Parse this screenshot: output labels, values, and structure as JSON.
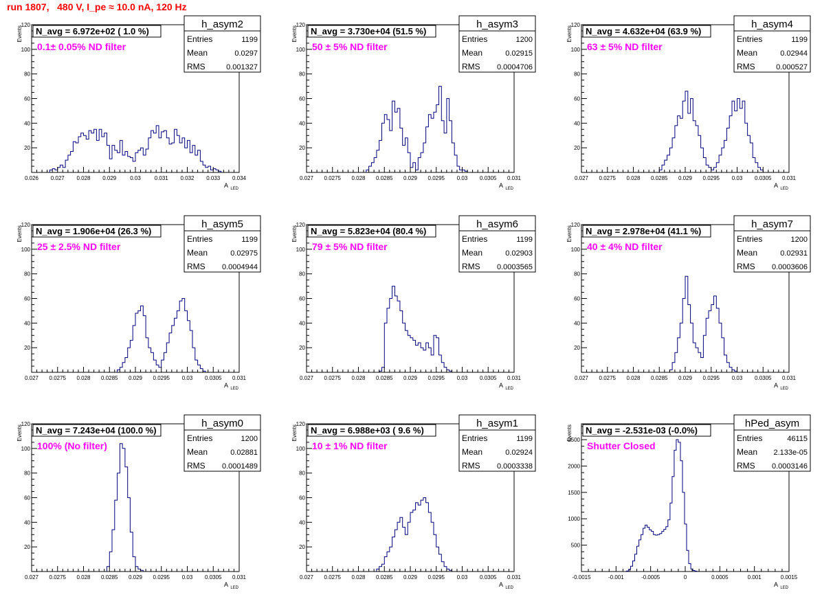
{
  "page": {
    "title": "run 1807,   480 V, I_pe ≈ 10.0 nA, 120 Hz"
  },
  "colors": {
    "histogram": "#000080",
    "annotation": "#ff00ff",
    "title": "#ff0000"
  },
  "chart_data": [
    {
      "type": "histogram",
      "name": "h_asym2",
      "ylabel": "Events",
      "xlabel_main": "A",
      "xlabel_sub": "LED",
      "navg": "N_avg = 6.972e+02 ( 1.0 %)",
      "note": "0.1± 0.05% ND filter",
      "stats": {
        "entries": "1199",
        "mean": "0.0297",
        "rms": "0.001327"
      },
      "xlim": [
        0.026,
        0.034
      ],
      "ylim": [
        0,
        120
      ],
      "xticks": [
        "0.026",
        "0.027",
        "0.028",
        "0.029",
        "0.03",
        "0.031",
        "0.032",
        "0.033",
        "0.034"
      ],
      "yticks": [
        "20",
        "40",
        "60",
        "80",
        "100",
        "120"
      ],
      "bin_start": 0.0267,
      "bin_width": 0.0001,
      "counts": [
        2,
        3,
        2,
        4,
        6,
        4,
        10,
        14,
        17,
        25,
        24,
        29,
        32,
        30,
        27,
        34,
        32,
        35,
        26,
        35,
        29,
        32,
        22,
        11,
        22,
        18,
        16,
        26,
        14,
        17,
        13,
        12,
        9,
        16,
        18,
        20,
        14,
        19,
        28,
        34,
        32,
        38,
        28,
        33,
        34,
        28,
        23,
        24,
        35,
        30,
        24,
        28,
        20,
        26,
        16,
        22,
        14,
        18,
        9,
        6,
        4,
        5,
        2,
        3,
        2,
        1
      ]
    },
    {
      "type": "histogram",
      "name": "h_asym3",
      "ylabel": "Events",
      "xlabel_main": "A",
      "xlabel_sub": "LED",
      "navg": "N_avg = 3.730e+04 (51.5 %)",
      "note": "50 ± 5% ND filter",
      "stats": {
        "entries": "1200",
        "mean": "0.02915",
        "rms": "0.0004706"
      },
      "xlim": [
        0.027,
        0.031
      ],
      "ylim": [
        0,
        120
      ],
      "xticks": [
        "0.027",
        "0.0275",
        "0.028",
        "0.0285",
        "0.029",
        "0.0295",
        "0.03",
        "0.0305",
        "0.031"
      ],
      "yticks": [
        "20",
        "40",
        "60",
        "80",
        "100",
        "120"
      ],
      "bin_start": 0.02815,
      "bin_width": 5e-05,
      "counts": [
        2,
        5,
        8,
        12,
        18,
        26,
        40,
        47,
        43,
        34,
        58,
        49,
        52,
        36,
        22,
        28,
        16,
        4,
        8,
        2,
        12,
        16,
        24,
        37,
        47,
        44,
        49,
        55,
        70,
        42,
        32,
        60,
        42,
        24,
        14,
        5,
        2,
        2,
        1
      ]
    },
    {
      "type": "histogram",
      "name": "h_asym4",
      "ylabel": "Events",
      "xlabel_main": "A",
      "xlabel_sub": "LED",
      "navg": "N_avg = 4.632e+04 (63.9 %)",
      "note": "63 ± 5% ND filter",
      "stats": {
        "entries": "1199",
        "mean": "0.02944",
        "rms": "0.000527"
      },
      "xlim": [
        0.027,
        0.031
      ],
      "ylim": [
        0,
        120
      ],
      "xticks": [
        "0.027",
        "0.0275",
        "0.028",
        "0.0285",
        "0.029",
        "0.0295",
        "0.03",
        "0.0305",
        "0.031"
      ],
      "yticks": [
        "20",
        "40",
        "60",
        "80",
        "100",
        "120"
      ],
      "bin_start": 0.0285,
      "bin_width": 5e-05,
      "counts": [
        2,
        6,
        10,
        14,
        20,
        28,
        38,
        46,
        44,
        58,
        66,
        48,
        60,
        42,
        38,
        30,
        20,
        12,
        6,
        4,
        2,
        4,
        8,
        14,
        20,
        26,
        36,
        46,
        58,
        50,
        60,
        52,
        58,
        40,
        30,
        24,
        12,
        8,
        4,
        2
      ]
    },
    {
      "type": "histogram",
      "name": "h_asym5",
      "ylabel": "Events",
      "xlabel_main": "A",
      "xlabel_sub": "LED",
      "navg": "N_avg = 1.906e+04 (26.3 %)",
      "note": "25 ± 2.5% ND filter",
      "stats": {
        "entries": "1199",
        "mean": "0.02975",
        "rms": "0.0004944"
      },
      "xlim": [
        0.027,
        0.031
      ],
      "ylim": [
        0,
        120
      ],
      "xticks": [
        "0.027",
        "0.0275",
        "0.028",
        "0.0285",
        "0.029",
        "0.0295",
        "0.03",
        "0.0305",
        "0.031"
      ],
      "yticks": [
        "20",
        "40",
        "60",
        "80",
        "100",
        "120"
      ],
      "bin_start": 0.02865,
      "bin_width": 5e-05,
      "counts": [
        2,
        4,
        8,
        12,
        20,
        26,
        38,
        48,
        50,
        54,
        46,
        28,
        20,
        16,
        10,
        6,
        4,
        10,
        16,
        24,
        32,
        38,
        44,
        50,
        58,
        60,
        50,
        42,
        34,
        20,
        10,
        6,
        3,
        1
      ]
    },
    {
      "type": "histogram",
      "name": "h_asym6",
      "ylabel": "Events",
      "xlabel_main": "A",
      "xlabel_sub": "LED",
      "navg": "N_avg = 5.823e+04 (80.4 %)",
      "note": "79 ± 5% ND filter",
      "stats": {
        "entries": "1199",
        "mean": "0.02903",
        "rms": "0.0003565"
      },
      "xlim": [
        0.027,
        0.031
      ],
      "ylim": [
        0,
        120
      ],
      "xticks": [
        "0.027",
        "0.0275",
        "0.028",
        "0.0285",
        "0.029",
        "0.0295",
        "0.03",
        "0.0305",
        "0.031"
      ],
      "yticks": [
        "20",
        "40",
        "60",
        "80",
        "100",
        "120"
      ],
      "bin_start": 0.0284,
      "bin_width": 5e-05,
      "counts": [
        1,
        4,
        40,
        52,
        60,
        70,
        62,
        58,
        50,
        40,
        34,
        30,
        28,
        26,
        22,
        24,
        20,
        18,
        24,
        20,
        14,
        30,
        28,
        14,
        8,
        4,
        2,
        1
      ]
    },
    {
      "type": "histogram",
      "name": "h_asym7",
      "ylabel": "Events",
      "xlabel_main": "A",
      "xlabel_sub": "LED",
      "navg": "N_avg = 2.978e+04 (41.1 %)",
      "note": "40 ± 4% ND filter",
      "stats": {
        "entries": "1200",
        "mean": "0.02931",
        "rms": "0.0003606"
      },
      "xlim": [
        0.027,
        0.031
      ],
      "ylim": [
        0,
        120
      ],
      "xticks": [
        "0.027",
        "0.0275",
        "0.028",
        "0.0285",
        "0.029",
        "0.0295",
        "0.03",
        "0.0305",
        "0.031"
      ],
      "yticks": [
        "20",
        "40",
        "60",
        "80",
        "100",
        "120"
      ],
      "bin_start": 0.0287,
      "bin_width": 5e-05,
      "counts": [
        2,
        8,
        16,
        28,
        40,
        60,
        78,
        55,
        40,
        24,
        20,
        16,
        12,
        30,
        44,
        50,
        55,
        62,
        52,
        40,
        28,
        14,
        8,
        4,
        2,
        1
      ]
    },
    {
      "type": "histogram",
      "name": "h_asym0",
      "ylabel": "Events",
      "xlabel_main": "A",
      "xlabel_sub": "LED",
      "navg": "N_avg = 7.243e+04 (100.0 %)",
      "note": "100% (No filter)",
      "stats": {
        "entries": "1200",
        "mean": "0.02881",
        "rms": "0.0001489"
      },
      "xlim": [
        0.027,
        0.031
      ],
      "ylim": [
        0,
        120
      ],
      "xticks": [
        "0.027",
        "0.0275",
        "0.028",
        "0.0285",
        "0.029",
        "0.0295",
        "0.03",
        "0.0305",
        "0.031"
      ],
      "yticks": [
        "20",
        "40",
        "60",
        "80",
        "100",
        "120"
      ],
      "bin_start": 0.02845,
      "bin_width": 5e-05,
      "counts": [
        4,
        16,
        34,
        58,
        80,
        104,
        100,
        85,
        60,
        32,
        12,
        4,
        2,
        1
      ]
    },
    {
      "type": "histogram",
      "name": "h_asym1",
      "ylabel": "Events",
      "xlabel_main": "A",
      "xlabel_sub": "LED",
      "navg": "N_avg = 6.988e+03 ( 9.6 %)",
      "note": "10 ± 1% ND filter",
      "stats": {
        "entries": "1199",
        "mean": "0.02924",
        "rms": "0.0003338"
      },
      "xlim": [
        0.027,
        0.031
      ],
      "ylim": [
        0,
        120
      ],
      "xticks": [
        "0.027",
        "0.0275",
        "0.028",
        "0.0285",
        "0.029",
        "0.0295",
        "0.03",
        "0.0305",
        "0.031"
      ],
      "yticks": [
        "20",
        "40",
        "60",
        "80",
        "100",
        "120"
      ],
      "bin_start": 0.02835,
      "bin_width": 5e-05,
      "counts": [
        2,
        4,
        6,
        12,
        16,
        20,
        28,
        34,
        40,
        44,
        36,
        30,
        40,
        48,
        50,
        56,
        54,
        58,
        60,
        56,
        48,
        40,
        30,
        20,
        14,
        8,
        4,
        2,
        1
      ]
    },
    {
      "type": "histogram",
      "name": "hPed_asym",
      "ylabel": "Events",
      "xlabel_main": "A",
      "xlabel_sub": "LED",
      "navg": "N_avg = -2.531e-03 (-0.0%)",
      "note": "Shutter Closed",
      "stats": {
        "entries": "46115",
        "mean": "2.133e-05",
        "rms": "0.0003146"
      },
      "xlim": [
        -0.0015,
        0.0015
      ],
      "ylim": [
        0,
        2800
      ],
      "xticks": [
        "-0.0015",
        "-0.001",
        "-0.0005",
        "0",
        "0.0005",
        "0.001",
        "0.0015"
      ],
      "yticks": [
        "500",
        "1000",
        "1500",
        "2000",
        "2500"
      ],
      "bin_start": -0.00085,
      "bin_width": 3e-05,
      "counts": [
        10,
        40,
        100,
        200,
        330,
        480,
        600,
        700,
        820,
        880,
        840,
        790,
        760,
        700,
        690,
        700,
        720,
        760,
        800,
        850,
        980,
        1300,
        1800,
        2300,
        2500,
        2450,
        2100,
        1500,
        900,
        400,
        150,
        50,
        20,
        8
      ]
    }
  ]
}
